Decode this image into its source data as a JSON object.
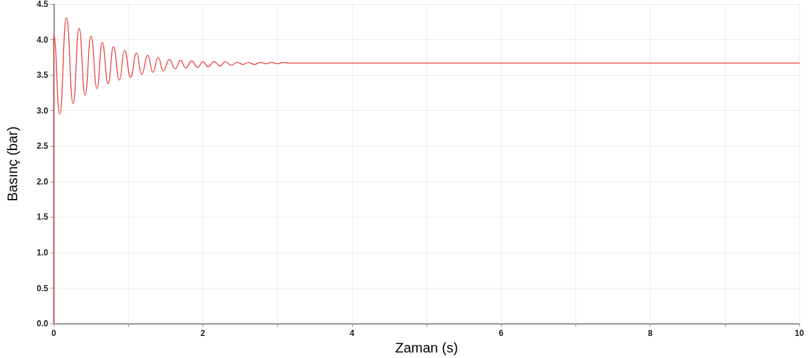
{
  "chart_data": {
    "type": "line",
    "xlabel": "Zaman (s)",
    "ylabel": "Basınç (bar)",
    "series": [
      {
        "color": "#e8413c",
        "x": [
          0,
          0,
          0.08,
          0.17,
          0.26,
          0.34,
          0.42,
          0.5,
          0.58,
          0.65,
          0.73,
          0.8,
          0.88,
          0.95,
          1.03,
          1.11,
          1.18,
          1.26,
          1.33,
          1.4,
          1.47,
          1.55,
          1.63,
          1.7,
          1.77,
          1.85,
          1.93,
          2.0,
          2.07,
          2.15,
          2.23,
          2.3,
          2.38,
          2.46,
          2.54,
          2.61,
          2.69,
          2.77,
          2.85,
          2.92,
          3.0,
          3.08,
          3.15,
          3.3,
          10
        ],
        "values": [
          0,
          4.07,
          2.95,
          4.31,
          3.1,
          4.16,
          3.22,
          4.05,
          3.31,
          3.96,
          3.38,
          3.9,
          3.43,
          3.85,
          3.47,
          3.81,
          3.51,
          3.78,
          3.54,
          3.75,
          3.56,
          3.72,
          3.59,
          3.71,
          3.6,
          3.7,
          3.61,
          3.69,
          3.62,
          3.69,
          3.63,
          3.69,
          3.64,
          3.68,
          3.65,
          3.68,
          3.65,
          3.68,
          3.66,
          3.68,
          3.66,
          3.68,
          3.67,
          3.67,
          3.67
        ]
      }
    ],
    "xlim": [
      0,
      10
    ],
    "xticks": [
      0,
      {
        "value": 1,
        "label": null
      },
      2,
      {
        "value": 3,
        "label": null
      },
      4,
      {
        "value": 5,
        "label": null
      },
      6,
      {
        "value": 7,
        "label": null
      },
      8,
      {
        "value": 9,
        "label": null
      },
      10
    ],
    "ylim": [
      0,
      4.5
    ],
    "yticks": [
      {
        "value": 0,
        "label": "0.0"
      },
      {
        "value": 0.5,
        "label": "0.5"
      },
      {
        "value": 1,
        "label": "1.0"
      },
      {
        "value": 1.5,
        "label": "1.5"
      },
      {
        "value": 2,
        "label": "2.0"
      },
      {
        "value": 2.5,
        "label": "2.5"
      },
      {
        "value": 3,
        "label": "3.0"
      },
      {
        "value": 3.5,
        "label": "3.5"
      },
      {
        "value": 4,
        "label": "4.0"
      },
      {
        "value": 4.5,
        "label": "4.5"
      }
    ],
    "grid": true,
    "marker": "none",
    "line_style": "solid"
  }
}
